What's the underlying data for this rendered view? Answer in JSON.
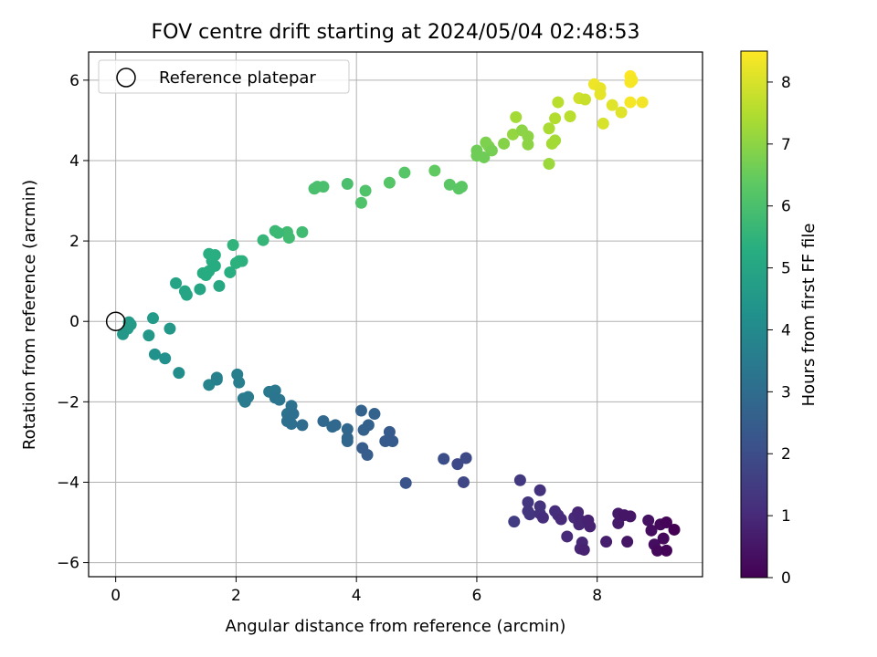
{
  "chart_data": {
    "type": "scatter",
    "title": "FOV centre drift starting at 2024/05/04 02:48:53",
    "xlabel": "Angular distance from reference (arcmin)",
    "ylabel": "Rotation from reference (arcmin)",
    "xlim": [
      -0.45,
      9.75
    ],
    "ylim": [
      -6.35,
      6.7
    ],
    "xticks": [
      0,
      2,
      4,
      6,
      8
    ],
    "yticks": [
      -6,
      -4,
      -2,
      0,
      2,
      4,
      6
    ],
    "grid": true,
    "legend": {
      "position": "top-left",
      "entries": [
        "Reference platepar"
      ]
    },
    "reference_point": {
      "x": 0,
      "y": 0
    },
    "colorbar": {
      "label": "Hours from first FF file",
      "colormap": "viridis",
      "range": [
        0,
        8.5
      ],
      "ticks": [
        0,
        1,
        2,
        3,
        4,
        5,
        6,
        7,
        8
      ]
    },
    "series": [
      {
        "points": [
          {
            "x": 8.55,
            "y": 6.1,
            "c": 8.5
          },
          {
            "x": 8.55,
            "y": 5.95,
            "c": 8.45
          },
          {
            "x": 8.58,
            "y": 6.0,
            "c": 8.4
          },
          {
            "x": 7.95,
            "y": 5.9,
            "c": 8.3
          },
          {
            "x": 8.05,
            "y": 5.8,
            "c": 8.25
          },
          {
            "x": 8.05,
            "y": 5.65,
            "c": 8.2
          },
          {
            "x": 8.55,
            "y": 5.45,
            "c": 8.4
          },
          {
            "x": 8.75,
            "y": 5.45,
            "c": 8.35
          },
          {
            "x": 8.25,
            "y": 5.38,
            "c": 8.1
          },
          {
            "x": 8.4,
            "y": 5.2,
            "c": 8.1
          },
          {
            "x": 8.1,
            "y": 4.92,
            "c": 8.0
          },
          {
            "x": 7.7,
            "y": 5.55,
            "c": 7.9
          },
          {
            "x": 7.8,
            "y": 5.52,
            "c": 7.8
          },
          {
            "x": 7.35,
            "y": 5.45,
            "c": 7.6
          },
          {
            "x": 7.55,
            "y": 5.1,
            "c": 7.6
          },
          {
            "x": 7.3,
            "y": 5.05,
            "c": 7.5
          },
          {
            "x": 7.2,
            "y": 4.8,
            "c": 7.4
          },
          {
            "x": 7.3,
            "y": 4.5,
            "c": 7.3
          },
          {
            "x": 7.25,
            "y": 4.42,
            "c": 7.3
          },
          {
            "x": 7.2,
            "y": 3.92,
            "c": 7.2
          },
          {
            "x": 6.65,
            "y": 5.08,
            "c": 7.3
          },
          {
            "x": 6.6,
            "y": 4.65,
            "c": 7.1
          },
          {
            "x": 6.75,
            "y": 4.75,
            "c": 7.0
          },
          {
            "x": 6.85,
            "y": 4.6,
            "c": 7.0
          },
          {
            "x": 6.85,
            "y": 4.4,
            "c": 7.0
          },
          {
            "x": 6.45,
            "y": 4.42,
            "c": 6.9
          },
          {
            "x": 6.15,
            "y": 4.45,
            "c": 6.8
          },
          {
            "x": 6.2,
            "y": 4.35,
            "c": 6.8
          },
          {
            "x": 6.25,
            "y": 4.25,
            "c": 6.7
          },
          {
            "x": 6.0,
            "y": 4.25,
            "c": 6.6
          },
          {
            "x": 6.0,
            "y": 4.12,
            "c": 6.6
          },
          {
            "x": 6.12,
            "y": 4.08,
            "c": 6.6
          },
          {
            "x": 5.3,
            "y": 3.75,
            "c": 6.4
          },
          {
            "x": 5.55,
            "y": 3.4,
            "c": 6.3
          },
          {
            "x": 5.7,
            "y": 3.3,
            "c": 6.3
          },
          {
            "x": 5.75,
            "y": 3.35,
            "c": 6.3
          },
          {
            "x": 4.8,
            "y": 3.7,
            "c": 6.2
          },
          {
            "x": 4.55,
            "y": 3.45,
            "c": 6.2
          },
          {
            "x": 4.15,
            "y": 3.25,
            "c": 6.1
          },
          {
            "x": 4.08,
            "y": 2.95,
            "c": 6.1
          },
          {
            "x": 3.85,
            "y": 3.42,
            "c": 6.0
          },
          {
            "x": 3.45,
            "y": 3.35,
            "c": 6.0
          },
          {
            "x": 3.3,
            "y": 3.3,
            "c": 6.0
          },
          {
            "x": 3.35,
            "y": 3.35,
            "c": 6.0
          },
          {
            "x": 3.1,
            "y": 2.22,
            "c": 5.8
          },
          {
            "x": 2.85,
            "y": 2.22,
            "c": 5.8
          },
          {
            "x": 2.88,
            "y": 2.08,
            "c": 5.8
          },
          {
            "x": 2.65,
            "y": 2.25,
            "c": 5.7
          },
          {
            "x": 2.7,
            "y": 2.2,
            "c": 5.7
          },
          {
            "x": 2.45,
            "y": 2.02,
            "c": 5.6
          },
          {
            "x": 1.95,
            "y": 1.9,
            "c": 5.5
          },
          {
            "x": 2.0,
            "y": 1.45,
            "c": 5.4
          },
          {
            "x": 2.05,
            "y": 1.5,
            "c": 5.4
          },
          {
            "x": 2.1,
            "y": 1.5,
            "c": 5.4
          },
          {
            "x": 1.9,
            "y": 1.22,
            "c": 5.3
          },
          {
            "x": 1.55,
            "y": 1.68,
            "c": 5.3
          },
          {
            "x": 1.65,
            "y": 1.65,
            "c": 5.3
          },
          {
            "x": 1.6,
            "y": 1.5,
            "c": 5.3
          },
          {
            "x": 1.65,
            "y": 1.38,
            "c": 5.2
          },
          {
            "x": 1.55,
            "y": 1.25,
            "c": 5.2
          },
          {
            "x": 1.5,
            "y": 1.15,
            "c": 5.2
          },
          {
            "x": 1.45,
            "y": 1.2,
            "c": 5.2
          },
          {
            "x": 1.72,
            "y": 0.88,
            "c": 5.1
          },
          {
            "x": 1.4,
            "y": 0.8,
            "c": 5.0
          },
          {
            "x": 1.15,
            "y": 0.75,
            "c": 5.0
          },
          {
            "x": 1.18,
            "y": 0.66,
            "c": 5.0
          },
          {
            "x": 1.0,
            "y": 0.95,
            "c": 4.9
          },
          {
            "x": 0.22,
            "y": -0.02,
            "c": 4.6
          },
          {
            "x": 0.25,
            "y": -0.08,
            "c": 4.6
          },
          {
            "x": 0.2,
            "y": -0.18,
            "c": 4.6
          },
          {
            "x": 0.12,
            "y": -0.32,
            "c": 4.5
          },
          {
            "x": 0.62,
            "y": 0.08,
            "c": 4.6
          },
          {
            "x": 0.55,
            "y": -0.35,
            "c": 4.5
          },
          {
            "x": 0.9,
            "y": -0.18,
            "c": 4.5
          },
          {
            "x": 0.65,
            "y": -0.82,
            "c": 4.3
          },
          {
            "x": 0.82,
            "y": -0.92,
            "c": 4.2
          },
          {
            "x": 1.05,
            "y": -1.28,
            "c": 4.1
          },
          {
            "x": 1.55,
            "y": -1.58,
            "c": 3.8
          },
          {
            "x": 1.68,
            "y": -1.45,
            "c": 3.7
          },
          {
            "x": 1.68,
            "y": -1.4,
            "c": 3.7
          },
          {
            "x": 2.02,
            "y": -1.32,
            "c": 3.6
          },
          {
            "x": 2.05,
            "y": -1.52,
            "c": 3.6
          },
          {
            "x": 2.12,
            "y": -1.92,
            "c": 3.5
          },
          {
            "x": 2.15,
            "y": -2.0,
            "c": 3.5
          },
          {
            "x": 2.2,
            "y": -1.88,
            "c": 3.5
          },
          {
            "x": 2.55,
            "y": -1.75,
            "c": 3.4
          },
          {
            "x": 2.65,
            "y": -1.72,
            "c": 3.4
          },
          {
            "x": 2.65,
            "y": -1.9,
            "c": 3.3
          },
          {
            "x": 2.72,
            "y": -1.95,
            "c": 3.3
          },
          {
            "x": 2.92,
            "y": -2.1,
            "c": 3.2
          },
          {
            "x": 2.85,
            "y": -2.3,
            "c": 3.2
          },
          {
            "x": 2.9,
            "y": -2.35,
            "c": 3.2
          },
          {
            "x": 2.85,
            "y": -2.48,
            "c": 3.1
          },
          {
            "x": 2.92,
            "y": -2.55,
            "c": 3.1
          },
          {
            "x": 2.95,
            "y": -2.3,
            "c": 3.1
          },
          {
            "x": 3.1,
            "y": -2.58,
            "c": 3.0
          },
          {
            "x": 3.45,
            "y": -2.48,
            "c": 2.9
          },
          {
            "x": 3.6,
            "y": -2.62,
            "c": 2.9
          },
          {
            "x": 3.65,
            "y": -2.58,
            "c": 2.9
          },
          {
            "x": 3.85,
            "y": -2.68,
            "c": 2.8
          },
          {
            "x": 3.85,
            "y": -2.9,
            "c": 2.8
          },
          {
            "x": 3.85,
            "y": -2.98,
            "c": 2.8
          },
          {
            "x": 4.08,
            "y": -2.22,
            "c": 2.7
          },
          {
            "x": 4.3,
            "y": -2.3,
            "c": 2.7
          },
          {
            "x": 4.2,
            "y": -2.58,
            "c": 2.6
          },
          {
            "x": 4.12,
            "y": -2.7,
            "c": 2.6
          },
          {
            "x": 4.1,
            "y": -3.15,
            "c": 2.5
          },
          {
            "x": 4.18,
            "y": -3.32,
            "c": 2.5
          },
          {
            "x": 4.55,
            "y": -2.75,
            "c": 2.4
          },
          {
            "x": 4.48,
            "y": -2.98,
            "c": 2.4
          },
          {
            "x": 4.6,
            "y": -2.98,
            "c": 2.4
          },
          {
            "x": 4.82,
            "y": -4.02,
            "c": 2.2
          },
          {
            "x": 5.45,
            "y": -3.42,
            "c": 2.0
          },
          {
            "x": 5.68,
            "y": -3.55,
            "c": 1.9
          },
          {
            "x": 5.82,
            "y": -3.4,
            "c": 1.9
          },
          {
            "x": 5.78,
            "y": -4.0,
            "c": 1.8
          },
          {
            "x": 6.62,
            "y": -4.98,
            "c": 1.5
          },
          {
            "x": 6.72,
            "y": -3.95,
            "c": 1.4
          },
          {
            "x": 6.85,
            "y": -4.5,
            "c": 1.3
          },
          {
            "x": 6.85,
            "y": -4.72,
            "c": 1.3
          },
          {
            "x": 6.88,
            "y": -4.8,
            "c": 1.3
          },
          {
            "x": 7.05,
            "y": -4.2,
            "c": 1.2
          },
          {
            "x": 7.05,
            "y": -4.6,
            "c": 1.2
          },
          {
            "x": 7.05,
            "y": -4.78,
            "c": 1.2
          },
          {
            "x": 7.1,
            "y": -4.88,
            "c": 1.1
          },
          {
            "x": 7.3,
            "y": -4.72,
            "c": 1.1
          },
          {
            "x": 7.35,
            "y": -4.82,
            "c": 1.1
          },
          {
            "x": 7.4,
            "y": -4.92,
            "c": 1.0
          },
          {
            "x": 7.5,
            "y": -5.35,
            "c": 1.0
          },
          {
            "x": 7.62,
            "y": -4.88,
            "c": 1.0
          },
          {
            "x": 7.68,
            "y": -4.75,
            "c": 0.9
          },
          {
            "x": 7.72,
            "y": -4.95,
            "c": 0.9
          },
          {
            "x": 7.7,
            "y": -5.05,
            "c": 0.9
          },
          {
            "x": 7.72,
            "y": -5.65,
            "c": 0.9
          },
          {
            "x": 7.75,
            "y": -5.5,
            "c": 0.9
          },
          {
            "x": 7.78,
            "y": -5.68,
            "c": 0.8
          },
          {
            "x": 7.85,
            "y": -4.95,
            "c": 0.8
          },
          {
            "x": 7.88,
            "y": -5.1,
            "c": 0.8
          },
          {
            "x": 8.15,
            "y": -5.48,
            "c": 0.7
          },
          {
            "x": 8.35,
            "y": -4.78,
            "c": 0.6
          },
          {
            "x": 8.35,
            "y": -5.02,
            "c": 0.6
          },
          {
            "x": 8.45,
            "y": -4.82,
            "c": 0.5
          },
          {
            "x": 8.5,
            "y": -5.48,
            "c": 0.5
          },
          {
            "x": 8.55,
            "y": -4.85,
            "c": 0.5
          },
          {
            "x": 8.85,
            "y": -4.95,
            "c": 0.4
          },
          {
            "x": 8.9,
            "y": -5.2,
            "c": 0.3
          },
          {
            "x": 8.95,
            "y": -5.55,
            "c": 0.3
          },
          {
            "x": 9.0,
            "y": -5.7,
            "c": 0.2
          },
          {
            "x": 9.05,
            "y": -5.05,
            "c": 0.2
          },
          {
            "x": 9.1,
            "y": -5.4,
            "c": 0.2
          },
          {
            "x": 9.15,
            "y": -5.0,
            "c": 0.1
          },
          {
            "x": 9.15,
            "y": -5.7,
            "c": 0.1
          },
          {
            "x": 9.28,
            "y": -5.18,
            "c": 0.0
          }
        ]
      }
    ]
  }
}
